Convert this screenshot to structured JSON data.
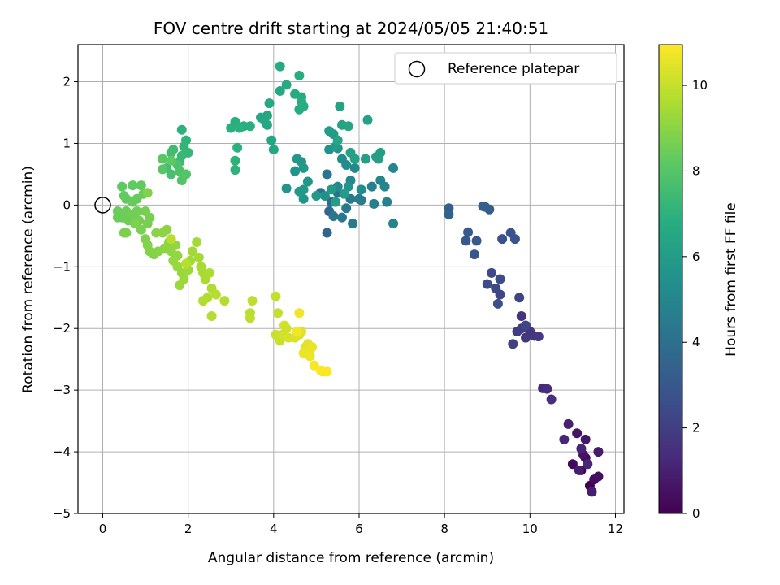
{
  "chart_data": {
    "type": "scatter",
    "title": "FOV centre drift starting at 2024/05/05 21:40:51",
    "xlabel": "Angular distance from reference (arcmin)",
    "ylabel": "Rotation from reference (arcmin)",
    "xlim": [
      -0.58,
      12.2
    ],
    "ylim": [
      -5,
      2.6
    ],
    "xticks": [
      0,
      2,
      4,
      6,
      8,
      10,
      12
    ],
    "yticks": [
      -5,
      -4,
      -3,
      -2,
      -1,
      0,
      1,
      2
    ],
    "grid": true,
    "colormap": "viridis",
    "colorbar": {
      "label": "Hours from first FF file",
      "range": [
        0,
        10.95
      ],
      "ticks": [
        0,
        2,
        4,
        6,
        8,
        10
      ]
    },
    "legend": {
      "position": "top-right",
      "entries": [
        "Reference platepar"
      ]
    },
    "reference_point": {
      "x": 0,
      "y": 0
    },
    "clusters": [
      {
        "hours": [
          0.0,
          1.2
        ],
        "points": [
          [
            11.4,
            -4.55
          ],
          [
            11.2,
            -4.3
          ],
          [
            11.0,
            -4.2
          ],
          [
            11.3,
            -4.1
          ],
          [
            11.5,
            -4.45
          ],
          [
            11.6,
            -4.4
          ],
          [
            11.25,
            -4.05
          ],
          [
            11.1,
            -3.7
          ],
          [
            11.3,
            -3.8
          ],
          [
            11.6,
            -4.0
          ],
          [
            11.15,
            -4.3
          ],
          [
            11.45,
            -4.65
          ],
          [
            10.9,
            -3.55
          ],
          [
            11.2,
            -3.95
          ],
          [
            11.35,
            -4.2
          ]
        ]
      },
      {
        "hours": [
          1.2,
          2.3
        ],
        "points": [
          [
            10.8,
            -3.8
          ],
          [
            10.3,
            -2.97
          ],
          [
            10.4,
            -2.98
          ],
          [
            10.5,
            -3.15
          ],
          [
            9.8,
            -1.8
          ],
          [
            10.0,
            -2.05
          ],
          [
            9.9,
            -2.15
          ],
          [
            10.1,
            -2.12
          ],
          [
            10.2,
            -2.13
          ],
          [
            9.7,
            -2.05
          ],
          [
            9.8,
            -2.0
          ],
          [
            9.6,
            -2.25
          ],
          [
            9.75,
            -1.5
          ],
          [
            9.9,
            -1.95
          ]
        ]
      },
      {
        "hours": [
          2.3,
          3.3
        ],
        "points": [
          [
            9.3,
            -1.45
          ],
          [
            9.2,
            -1.35
          ],
          [
            9.1,
            -1.1
          ],
          [
            9.3,
            -1.2
          ],
          [
            9.0,
            -1.28
          ],
          [
            9.25,
            -1.6
          ],
          [
            9.35,
            -0.55
          ],
          [
            9.55,
            -0.45
          ],
          [
            9.65,
            -0.55
          ],
          [
            8.7,
            -0.8
          ],
          [
            8.5,
            -0.58
          ],
          [
            8.55,
            -0.44
          ],
          [
            8.75,
            -0.58
          ],
          [
            8.95,
            -0.03
          ],
          [
            9.05,
            -0.07
          ],
          [
            8.9,
            -0.02
          ]
        ]
      },
      {
        "hours": [
          3.3,
          4.3
        ],
        "points": [
          [
            8.1,
            -0.05
          ],
          [
            8.1,
            -0.15
          ],
          [
            5.25,
            -0.45
          ],
          [
            5.3,
            -0.1
          ],
          [
            5.35,
            0.05
          ],
          [
            5.5,
            0.2
          ],
          [
            5.1,
            0.2
          ],
          [
            5.25,
            0.5
          ],
          [
            5.4,
            -0.18
          ]
        ]
      },
      {
        "hours": [
          4.3,
          5.6
        ],
        "points": [
          [
            5.6,
            -0.2
          ],
          [
            5.8,
            0.1
          ],
          [
            5.7,
            -0.05
          ],
          [
            5.85,
            -0.3
          ],
          [
            6.0,
            0.1
          ],
          [
            6.05,
            0.08
          ],
          [
            6.35,
            0.02
          ],
          [
            6.3,
            0.3
          ],
          [
            6.65,
            0.05
          ],
          [
            6.8,
            -0.3
          ],
          [
            6.6,
            0.3
          ],
          [
            6.5,
            0.4
          ],
          [
            6.8,
            0.6
          ],
          [
            5.8,
            0.4
          ],
          [
            5.5,
            0.3
          ],
          [
            5.9,
            0.6
          ],
          [
            5.7,
            0.65
          ],
          [
            5.6,
            0.75
          ],
          [
            6.05,
            0.25
          ],
          [
            5.2,
            0.15
          ],
          [
            5.3,
            0.9
          ],
          [
            5.5,
            0.92
          ],
          [
            5.75,
            0.3
          ]
        ]
      },
      {
        "hours": [
          5.6,
          6.4
        ],
        "points": [
          [
            4.5,
            0.55
          ],
          [
            4.3,
            0.27
          ],
          [
            4.7,
            0.1
          ],
          [
            4.8,
            0.38
          ],
          [
            4.65,
            0.7
          ],
          [
            4.55,
            0.75
          ],
          [
            4.7,
            0.6
          ],
          [
            4.6,
            0.22
          ],
          [
            4.7,
            0.25
          ],
          [
            5.0,
            0.15
          ],
          [
            5.35,
            0.25
          ],
          [
            5.4,
            1.15
          ],
          [
            5.45,
            0.95
          ],
          [
            5.3,
            1.2
          ],
          [
            5.45,
            0.05
          ],
          [
            5.65,
            0.18
          ],
          [
            6.15,
            0.75
          ],
          [
            6.4,
            0.78
          ],
          [
            6.5,
            0.85
          ],
          [
            6.45,
            0.75
          ],
          [
            5.8,
            0.85
          ],
          [
            5.9,
            0.75
          ],
          [
            6.2,
            1.38
          ],
          [
            5.55,
            1.6
          ],
          [
            5.6,
            1.3
          ],
          [
            5.75,
            1.28
          ],
          [
            5.5,
            1.05
          ]
        ]
      },
      {
        "hours": [
          6.4,
          7.0
        ],
        "points": [
          [
            4.0,
            0.9
          ],
          [
            3.95,
            1.05
          ],
          [
            3.85,
            1.3
          ],
          [
            3.75,
            1.4
          ],
          [
            3.85,
            1.45
          ],
          [
            3.7,
            1.42
          ],
          [
            3.9,
            1.65
          ],
          [
            4.15,
            1.85
          ],
          [
            4.3,
            1.95
          ],
          [
            4.15,
            2.25
          ],
          [
            4.5,
            1.8
          ],
          [
            4.65,
            1.75
          ],
          [
            4.7,
            1.6
          ],
          [
            4.6,
            1.55
          ],
          [
            4.65,
            1.68
          ],
          [
            4.6,
            2.1
          ],
          [
            3.3,
            1.28
          ],
          [
            3.45,
            1.28
          ],
          [
            3.1,
            1.35
          ],
          [
            3.0,
            1.25
          ],
          [
            3.15,
            0.93
          ],
          [
            3.2,
            1.25
          ],
          [
            3.1,
            0.72
          ],
          [
            3.1,
            0.57
          ]
        ]
      },
      {
        "hours": [
          7.0,
          8.2
        ],
        "points": [
          [
            1.85,
            1.22
          ],
          [
            1.95,
            1.05
          ],
          [
            1.9,
            0.95
          ],
          [
            2.0,
            0.85
          ],
          [
            1.85,
            0.8
          ],
          [
            1.8,
            0.7
          ],
          [
            1.65,
            0.9
          ],
          [
            1.6,
            0.85
          ],
          [
            1.5,
            0.6
          ],
          [
            1.6,
            0.5
          ],
          [
            1.75,
            0.65
          ],
          [
            1.8,
            0.55
          ],
          [
            1.85,
            0.4
          ],
          [
            1.95,
            0.5
          ],
          [
            1.4,
            0.58
          ],
          [
            1.4,
            0.75
          ],
          [
            1.6,
            0.72
          ]
        ]
      },
      {
        "hours": [
          8.2,
          8.8
        ],
        "points": [
          [
            0.45,
            0.3
          ],
          [
            0.7,
            0.32
          ],
          [
            0.9,
            0.32
          ],
          [
            0.5,
            0.15
          ],
          [
            0.55,
            0.1
          ],
          [
            0.7,
            0.05
          ],
          [
            0.8,
            0.1
          ],
          [
            0.95,
            0.18
          ],
          [
            0.35,
            -0.1
          ],
          [
            0.35,
            -0.2
          ],
          [
            0.45,
            -0.2
          ],
          [
            0.55,
            -0.1
          ],
          [
            0.6,
            -0.25
          ],
          [
            0.7,
            -0.15
          ],
          [
            0.8,
            -0.1
          ],
          [
            0.85,
            -0.25
          ],
          [
            1.0,
            -0.1
          ],
          [
            1.1,
            -0.2
          ],
          [
            1.05,
            -0.3
          ],
          [
            0.9,
            -0.4
          ],
          [
            0.5,
            -0.45
          ],
          [
            0.55,
            -0.45
          ],
          [
            0.75,
            -0.3
          ],
          [
            1.05,
            0.2
          ]
        ]
      },
      {
        "hours": [
          8.8,
          9.8
        ],
        "points": [
          [
            1.0,
            -0.55
          ],
          [
            1.05,
            -0.65
          ],
          [
            1.1,
            -0.75
          ],
          [
            1.2,
            -0.8
          ],
          [
            1.3,
            -0.75
          ],
          [
            1.25,
            -0.45
          ],
          [
            1.4,
            -0.45
          ],
          [
            1.5,
            -0.4
          ],
          [
            1.55,
            -0.6
          ],
          [
            1.45,
            -0.7
          ],
          [
            1.6,
            -0.75
          ],
          [
            1.7,
            -0.65
          ],
          [
            1.75,
            -0.82
          ],
          [
            1.65,
            -0.9
          ],
          [
            1.75,
            -1.0
          ],
          [
            1.85,
            -1.1
          ],
          [
            1.8,
            -1.3
          ],
          [
            1.9,
            -1.2
          ],
          [
            2.0,
            -1.05
          ],
          [
            2.05,
            -0.9
          ],
          [
            2.1,
            -0.75
          ],
          [
            2.2,
            -0.6
          ],
          [
            2.25,
            -0.85
          ],
          [
            2.3,
            -1.0
          ],
          [
            2.35,
            -1.1
          ],
          [
            2.4,
            -1.2
          ],
          [
            2.5,
            -1.1
          ],
          [
            2.55,
            -1.35
          ],
          [
            2.45,
            -1.5
          ],
          [
            2.35,
            -1.55
          ],
          [
            2.55,
            -1.8
          ],
          [
            2.85,
            -1.55
          ],
          [
            2.65,
            -1.45
          ],
          [
            1.95,
            -0.95
          ],
          [
            1.6,
            -0.55
          ]
        ]
      },
      {
        "hours": [
          9.8,
          10.95
        ],
        "points": [
          [
            3.45,
            -1.75
          ],
          [
            3.45,
            -1.83
          ],
          [
            3.5,
            -1.55
          ],
          [
            4.05,
            -1.48
          ],
          [
            4.1,
            -1.75
          ],
          [
            4.05,
            -2.1
          ],
          [
            4.15,
            -2.2
          ],
          [
            4.2,
            -2.1
          ],
          [
            4.25,
            -1.95
          ],
          [
            4.3,
            -2.0
          ],
          [
            4.25,
            -2.12
          ],
          [
            4.35,
            -2.15
          ],
          [
            4.5,
            -2.15
          ],
          [
            4.6,
            -2.1
          ],
          [
            4.65,
            -2.05
          ],
          [
            4.75,
            -2.3
          ],
          [
            4.8,
            -2.25
          ],
          [
            4.85,
            -2.35
          ],
          [
            4.9,
            -2.3
          ],
          [
            4.7,
            -2.4
          ],
          [
            4.85,
            -2.45
          ],
          [
            4.6,
            -1.75
          ],
          [
            4.55,
            -2.05
          ],
          [
            4.95,
            -2.6
          ],
          [
            5.15,
            -2.7
          ],
          [
            5.1,
            -2.68
          ],
          [
            5.25,
            -2.7
          ]
        ]
      }
    ]
  }
}
